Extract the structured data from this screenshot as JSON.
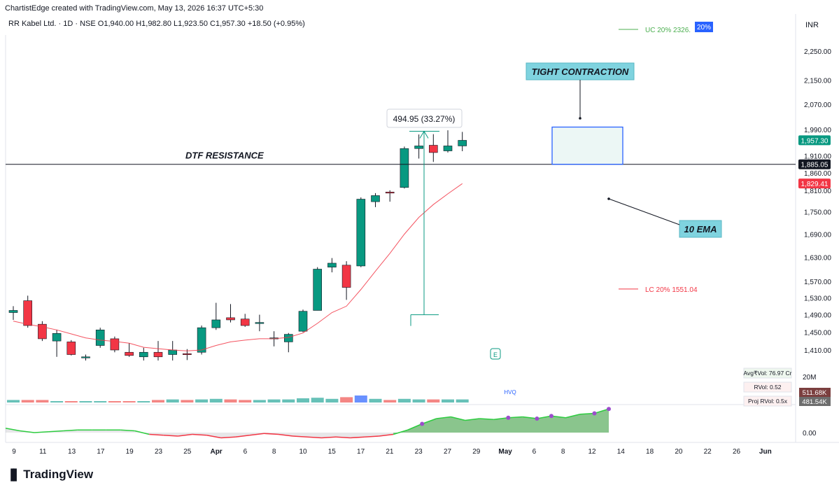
{
  "header": {
    "credit": "ChartistEdge created with TradingView.com, May 13, 2026 16:37 UTC+5:30",
    "symbol_line": "RR Kabel Ltd. · 1D · NSE  O1,940.00  H1,982.80  L1,923.50  C1,957.30  +18.50 (+0.95%)",
    "currency": "INR"
  },
  "brand": "TradingView",
  "colors": {
    "up": "#089981",
    "down": "#f23645",
    "ema": "#f23645",
    "annotation_bg": "#7fd3df",
    "box": "#2962ff",
    "volume_blue": "#2962ff",
    "rvol_fill": "#4caf50"
  },
  "chart_data": {
    "type": "candlestick",
    "title": "RR Kabel Ltd. · 1D · NSE",
    "yscale": "log",
    "ylim": [
      1370,
      2330
    ],
    "x_ticks": [
      "9",
      "11",
      "13",
      "17",
      "19",
      "23",
      "25",
      "Apr",
      "6",
      "8",
      "10",
      "15",
      "17",
      "21",
      "23",
      "27",
      "29",
      "May",
      "6",
      "8",
      "12",
      "14",
      "18",
      "20",
      "22",
      "26",
      "Jun"
    ],
    "y_ticks": [
      "2,250.00",
      "2,150.00",
      "2,070.00",
      "1,990.00",
      "1,910.00",
      "1,860.00",
      "1,810.00",
      "1,750.00",
      "1,690.00",
      "1,630.00",
      "1,570.00",
      "1,530.00",
      "1,490.00",
      "1,450.00",
      "1,410.00"
    ],
    "price_labels": {
      "last": "1,957.30",
      "line": "1,885.05",
      "ema": "1,829.41"
    },
    "candles": [
      {
        "o": 1495,
        "h": 1510,
        "l": 1478,
        "c": 1500
      },
      {
        "o": 1523,
        "h": 1535,
        "l": 1460,
        "c": 1465
      },
      {
        "o": 1468,
        "h": 1475,
        "l": 1430,
        "c": 1435
      },
      {
        "o": 1430,
        "h": 1455,
        "l": 1395,
        "c": 1447
      },
      {
        "o": 1428,
        "h": 1432,
        "l": 1398,
        "c": 1400
      },
      {
        "o": 1395,
        "h": 1400,
        "l": 1380,
        "c": 1395
      },
      {
        "o": 1420,
        "h": 1460,
        "l": 1415,
        "c": 1455
      },
      {
        "o": 1435,
        "h": 1440,
        "l": 1405,
        "c": 1410
      },
      {
        "o": 1405,
        "h": 1425,
        "l": 1395,
        "c": 1398
      },
      {
        "o": 1395,
        "h": 1415,
        "l": 1380,
        "c": 1405
      },
      {
        "o": 1405,
        "h": 1430,
        "l": 1385,
        "c": 1395
      },
      {
        "o": 1400,
        "h": 1430,
        "l": 1385,
        "c": 1410
      },
      {
        "o": 1402,
        "h": 1412,
        "l": 1388,
        "c": 1400
      },
      {
        "o": 1405,
        "h": 1465,
        "l": 1400,
        "c": 1460
      },
      {
        "o": 1460,
        "h": 1518,
        "l": 1455,
        "c": 1478
      },
      {
        "o": 1483,
        "h": 1515,
        "l": 1472,
        "c": 1478
      },
      {
        "o": 1480,
        "h": 1492,
        "l": 1462,
        "c": 1465
      },
      {
        "o": 1470,
        "h": 1490,
        "l": 1452,
        "c": 1472
      },
      {
        "o": 1437,
        "h": 1452,
        "l": 1418,
        "c": 1437
      },
      {
        "o": 1428,
        "h": 1448,
        "l": 1405,
        "c": 1445
      },
      {
        "o": 1452,
        "h": 1502,
        "l": 1450,
        "c": 1498
      },
      {
        "o": 1500,
        "h": 1605,
        "l": 1500,
        "c": 1600
      },
      {
        "o": 1605,
        "h": 1628,
        "l": 1592,
        "c": 1615
      },
      {
        "o": 1610,
        "h": 1620,
        "l": 1525,
        "c": 1555
      },
      {
        "o": 1608,
        "h": 1790,
        "l": 1605,
        "c": 1785
      },
      {
        "o": 1778,
        "h": 1802,
        "l": 1763,
        "c": 1795
      },
      {
        "o": 1805,
        "h": 1810,
        "l": 1778,
        "c": 1803
      },
      {
        "o": 1818,
        "h": 1938,
        "l": 1815,
        "c": 1932
      },
      {
        "o": 1932,
        "h": 1975,
        "l": 1902,
        "c": 1940
      },
      {
        "o": 1942,
        "h": 1976,
        "l": 1892,
        "c": 1920
      },
      {
        "o": 1925,
        "h": 1988,
        "l": 1920,
        "c": 1940
      },
      {
        "o": 1940,
        "h": 1983,
        "l": 1924,
        "c": 1957
      }
    ],
    "ema_values": [
      1475,
      1468,
      1462,
      1455,
      1446,
      1437,
      1432,
      1429,
      1425,
      1416,
      1413,
      1410,
      1408,
      1410,
      1420,
      1428,
      1432,
      1435,
      1435,
      1438,
      1448,
      1470,
      1495,
      1510,
      1550,
      1595,
      1640,
      1690,
      1735,
      1770,
      1800,
      1829
    ],
    "volume": [
      0.2,
      0.2,
      0.2,
      0,
      0,
      0,
      0,
      0,
      0,
      0,
      0.2,
      0.3,
      0.2,
      0.3,
      0.4,
      0.3,
      0.2,
      0.2,
      0.3,
      0.3,
      0.5,
      0.6,
      0.4,
      0.7,
      1.0,
      0.4,
      0.2,
      0.4,
      0.3,
      0.3,
      0.3,
      0.3
    ],
    "rvol": [
      0.05,
      0.02,
      0.0,
      0.01,
      0.02,
      0.03,
      0.03,
      0.03,
      0.03,
      0.02,
      -0.02,
      -0.03,
      -0.04,
      -0.02,
      -0.03,
      -0.06,
      -0.05,
      -0.03,
      -0.01,
      -0.02,
      -0.04,
      -0.05,
      -0.06,
      -0.05,
      -0.06,
      -0.05,
      -0.04,
      -0.02,
      0.03,
      0.1,
      0.16,
      0.18,
      0.14,
      0.16,
      0.15,
      0.17,
      0.18,
      0.16,
      0.19,
      0.17,
      0.21,
      0.22,
      0.27
    ],
    "limits": {
      "uc": {
        "label": "UC  20%  2326.",
        "badge": "20%",
        "price": 2326
      },
      "lc": {
        "label": "LC  20%  1551.04",
        "price": 1551.04
      }
    },
    "indicators": {
      "avgvol": "Avg₹Vol: 76.97 Cr",
      "rvol": "RVol: 0.52",
      "projrvol": "Proj RVol: 0.5x",
      "vol_axis_label": "20M",
      "vol_value_1": "511.68K",
      "vol_value_2": "481.54K",
      "hvq": "HVQ",
      "rvol_axis": "0.00",
      "earnings_marker": "E"
    },
    "annotations": {
      "tight_contraction": "TIGHT CONTRACTION",
      "dtf_resistance": "DTF RESISTANCE",
      "ema_label": "10 EMA",
      "measure": "494.95 (33.27%)"
    },
    "levels": {
      "resistance": 1885.05,
      "measure_from": 1490,
      "measure_to": 1985,
      "box_high": 1998,
      "box_low": 1885
    }
  }
}
